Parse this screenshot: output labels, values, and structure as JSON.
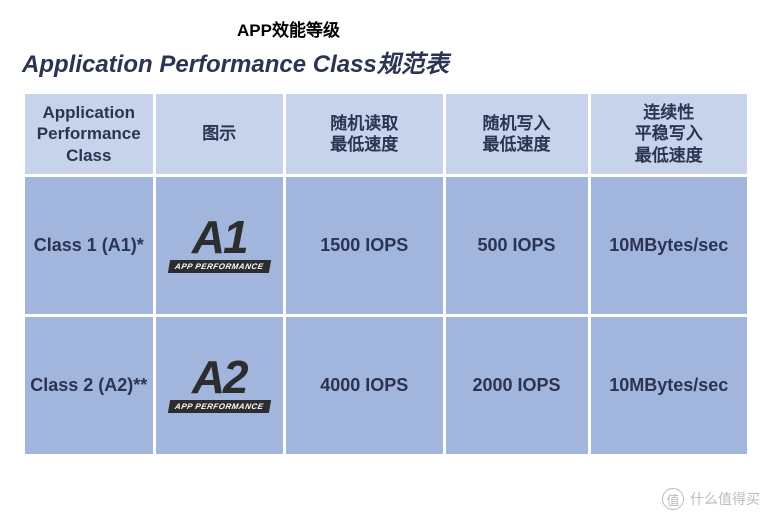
{
  "annotation": "APP效能等级",
  "title": "Application Performance Class规范表",
  "annotation_fontsize": 17,
  "title_fontsize": 24,
  "colors": {
    "header_bg": "#c7d2eb",
    "cell_bg": "#a2b5dc",
    "border": "#ffffff",
    "text": "#2c3454",
    "logo_dark": "#2d2d2f"
  },
  "table": {
    "col_widths_pct": [
      18,
      18,
      22,
      20,
      22
    ],
    "header_fontsize": 17,
    "cell_fontsize": 18,
    "logo_fontsize": 46,
    "columns": [
      [
        "Application",
        "Performance",
        "Class"
      ],
      [
        "图示"
      ],
      [
        "随机读取",
        "最低速度"
      ],
      [
        "随机写入",
        "最低速度"
      ],
      [
        "连续性",
        "平稳写入",
        "最低速度"
      ]
    ],
    "rows": [
      {
        "class_label": "Class 1 (A1)*",
        "logo_text": "A1",
        "logo_sub": "APP PERFORMANCE",
        "random_read": "1500 IOPS",
        "random_write": "500 IOPS",
        "seq_write": "10MBytes/sec"
      },
      {
        "class_label": "Class 2 (A2)**",
        "logo_text": "A2",
        "logo_sub": "APP PERFORMANCE",
        "random_read": "4000 IOPS",
        "random_write": "2000 IOPS",
        "seq_write": "10MBytes/sec"
      }
    ]
  },
  "watermark": {
    "icon": "值",
    "text": "什么值得买"
  }
}
